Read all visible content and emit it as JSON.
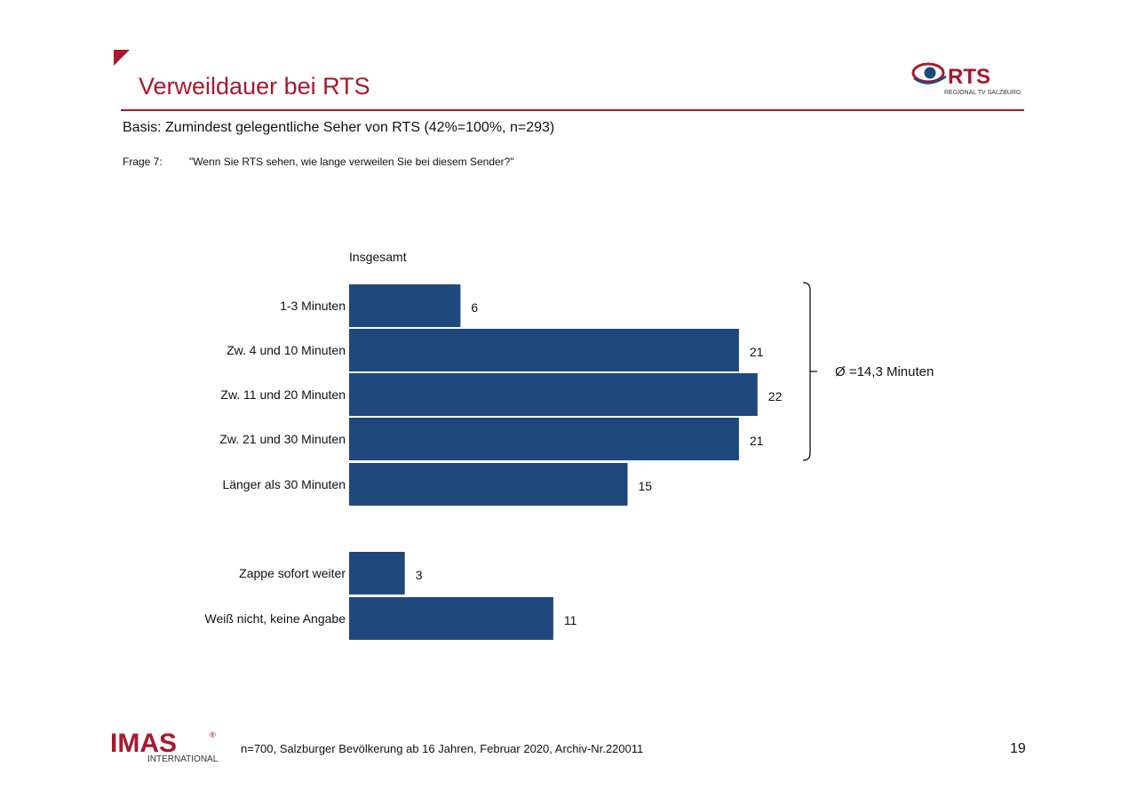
{
  "header": {
    "title": "Verweildauer bei RTS",
    "basis": "Basis:  Zumindest gelegentliche Seher von RTS (42%=100%, n=293)",
    "frage_label": "Frage 7:",
    "frage_text": "\"Wenn Sie RTS sehen, wie lange verweilen Sie bei diesem Sender?\""
  },
  "logos": {
    "rts_text": "RTS",
    "rts_subtitle": "REGIONAL TV SALZBURG",
    "imas_text": "IMAS",
    "imas_sub": "INTERNATIONAL",
    "imas_reg": "®"
  },
  "chart_data": {
    "type": "bar",
    "orientation": "horizontal",
    "series": [
      {
        "name": "Insgesamt",
        "categories": [
          "1-3 Minuten",
          "Zw. 4 und 10 Minuten",
          "Zw. 11 und 20 Minuten",
          "Zw. 21 und 30 Minuten",
          "Länger als 30 Minuten",
          "Zappe sofort weiter",
          "Weiß nicht, keine Angabe"
        ],
        "values": [
          6,
          21,
          22,
          21,
          15,
          3,
          11
        ]
      }
    ],
    "bar_color": "#1f497d",
    "annotation": "Ø =14,3 Minuten"
  },
  "footer": {
    "note": "n=700, Salzburger Bevölkerung ab 16 Jahren, Februar 2020, Archiv-Nr.220011",
    "page": "19"
  }
}
